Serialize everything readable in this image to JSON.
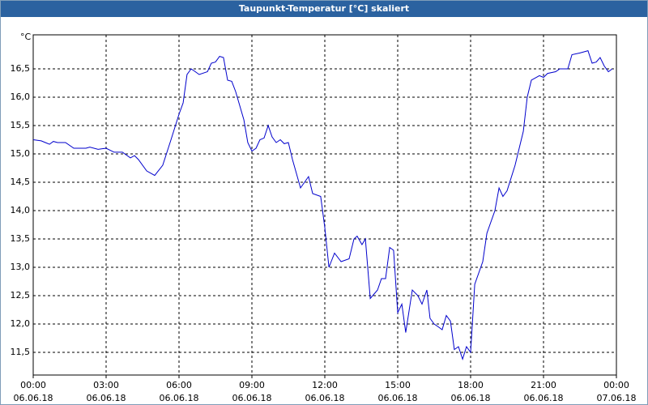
{
  "chart_data": {
    "type": "line",
    "title": "Taupunkt-Temperatur [°C] skaliert",
    "y_unit": "°C",
    "xlim": [
      0,
      24
    ],
    "ylim": [
      11.1,
      17.1
    ],
    "grid": true,
    "xticks": [
      {
        "value": 0,
        "label": "00:00\n06.06.18"
      },
      {
        "value": 3,
        "label": "03:00\n06.06.18"
      },
      {
        "value": 6,
        "label": "06:00\n06.06.18"
      },
      {
        "value": 9,
        "label": "09:00\n06.06.18"
      },
      {
        "value": 12,
        "label": "12:00\n06.06.18"
      },
      {
        "value": 15,
        "label": "15:00\n06.06.18"
      },
      {
        "value": 18,
        "label": "18:00\n06.06.18"
      },
      {
        "value": 21,
        "label": "21:00\n06.06.18"
      },
      {
        "value": 24,
        "label": "00:00\n07.06.18"
      }
    ],
    "yticks": [
      {
        "value": 11.5,
        "label": "11,5"
      },
      {
        "value": 12,
        "label": "12,0"
      },
      {
        "value": 12.5,
        "label": "12,5"
      },
      {
        "value": 13,
        "label": "13,0"
      },
      {
        "value": 13.5,
        "label": "13,5"
      },
      {
        "value": 14,
        "label": "14,0"
      },
      {
        "value": 14.5,
        "label": "14,5"
      },
      {
        "value": 15,
        "label": "15,0"
      },
      {
        "value": 15.5,
        "label": "15,5"
      },
      {
        "value": 16,
        "label": "16,0"
      },
      {
        "value": 16.5,
        "label": "16,5"
      }
    ],
    "series": [
      {
        "color": "#0000cc",
        "x": [
          0,
          0.33,
          0.5,
          0.67,
          0.83,
          1,
          1.33,
          1.67,
          2,
          2.17,
          2.33,
          2.67,
          3,
          3.33,
          3.67,
          4,
          4.17,
          4.33,
          4.67,
          5,
          5.33,
          5.67,
          6,
          6.17,
          6.33,
          6.5,
          6.67,
          6.83,
          7.17,
          7.33,
          7.5,
          7.67,
          7.83,
          8,
          8.17,
          8.33,
          8.67,
          8.83,
          9,
          9.17,
          9.33,
          9.5,
          9.67,
          9.83,
          10,
          10.17,
          10.33,
          10.5,
          10.67,
          11,
          11.33,
          11.5,
          11.83,
          12,
          12.17,
          12.4,
          12.67,
          13,
          13.2,
          13.33,
          13.53,
          13.67,
          13.87,
          14.17,
          14.33,
          14.5,
          14.67,
          14.83,
          15,
          15.17,
          15.33,
          15.6,
          15.83,
          16,
          16.2,
          16.33,
          16.5,
          16.67,
          16.83,
          17,
          17.17,
          17.33,
          17.5,
          17.67,
          17.83,
          18,
          18.17,
          18.5,
          18.67,
          19,
          19.17,
          19.33,
          19.5,
          19.83,
          20.17,
          20.33,
          20.5,
          20.83,
          21,
          21.17,
          21.5,
          21.67,
          22,
          22.17,
          22.5,
          22.83,
          23,
          23.17,
          23.33,
          23.5,
          23.67,
          23.83
        ],
        "values": [
          15.25,
          15.23,
          15.2,
          15.17,
          15.22,
          15.2,
          15.2,
          15.1,
          15.1,
          15.1,
          15.12,
          15.08,
          15.1,
          15.03,
          15.03,
          14.93,
          14.97,
          14.9,
          14.7,
          14.62,
          14.8,
          15.25,
          15.7,
          15.9,
          16.4,
          16.5,
          16.45,
          16.4,
          16.45,
          16.6,
          16.62,
          16.72,
          16.7,
          16.3,
          16.28,
          16.1,
          15.6,
          15.2,
          15.05,
          15.1,
          15.25,
          15.28,
          15.5,
          15.3,
          15.2,
          15.25,
          15.18,
          15.2,
          14.9,
          14.4,
          14.6,
          14.3,
          14.25,
          13.7,
          13.0,
          13.25,
          13.1,
          13.15,
          13.5,
          13.55,
          13.4,
          13.5,
          12.45,
          12.6,
          12.8,
          12.8,
          13.35,
          13.3,
          12.2,
          12.35,
          11.85,
          12.6,
          12.5,
          12.35,
          12.6,
          12.1,
          12.0,
          11.95,
          11.9,
          12.15,
          12.05,
          11.55,
          11.6,
          11.38,
          11.6,
          11.5,
          12.7,
          13.1,
          13.6,
          14.0,
          14.4,
          14.25,
          14.35,
          14.8,
          15.4,
          16.0,
          16.3,
          16.38,
          16.35,
          16.42,
          16.45,
          16.5,
          16.5,
          16.75,
          16.78,
          16.82,
          16.6,
          16.62,
          16.7,
          16.55,
          16.45,
          16.5
        ]
      }
    ]
  }
}
